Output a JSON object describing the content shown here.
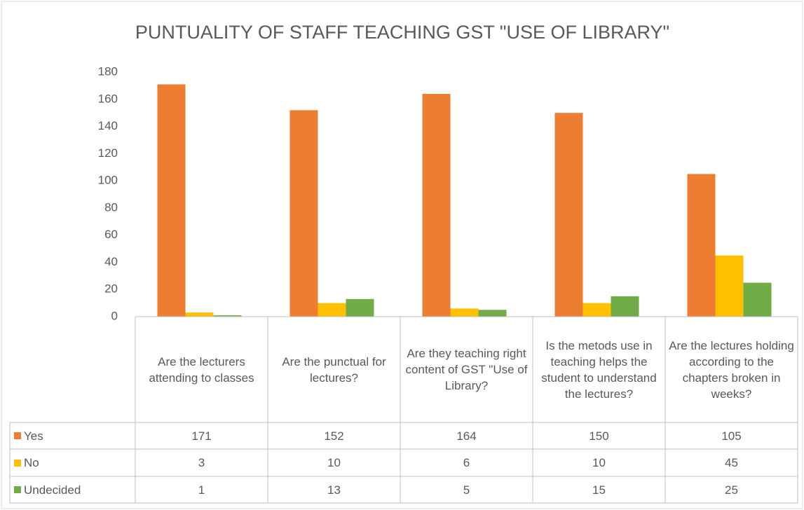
{
  "chart_data": {
    "type": "bar",
    "title": "PUNTUALITY OF STAFF TEACHING GST \"USE OF LIBRARY\"",
    "categories": [
      "Are the lecturers attending to classes",
      "Are the punctual for lectures?",
      "Are they teaching right content of GST \"Use of Library?",
      "Is the metods use in teaching helps the student to understand the lectures?",
      "Are the lectures holding according to the chapters broken in weeks?"
    ],
    "series": [
      {
        "name": "Yes",
        "color": "#ED7D31",
        "values": [
          171,
          152,
          164,
          150,
          105
        ]
      },
      {
        "name": "No",
        "color": "#FFC000",
        "values": [
          3,
          10,
          6,
          10,
          45
        ]
      },
      {
        "name": "Undecided",
        "color": "#70AD47",
        "values": [
          1,
          13,
          5,
          15,
          25
        ]
      }
    ],
    "ylim": [
      0,
      180
    ],
    "yticks": [
      0,
      20,
      40,
      60,
      80,
      100,
      120,
      140,
      160,
      180
    ],
    "grid": false,
    "data_table": true
  }
}
